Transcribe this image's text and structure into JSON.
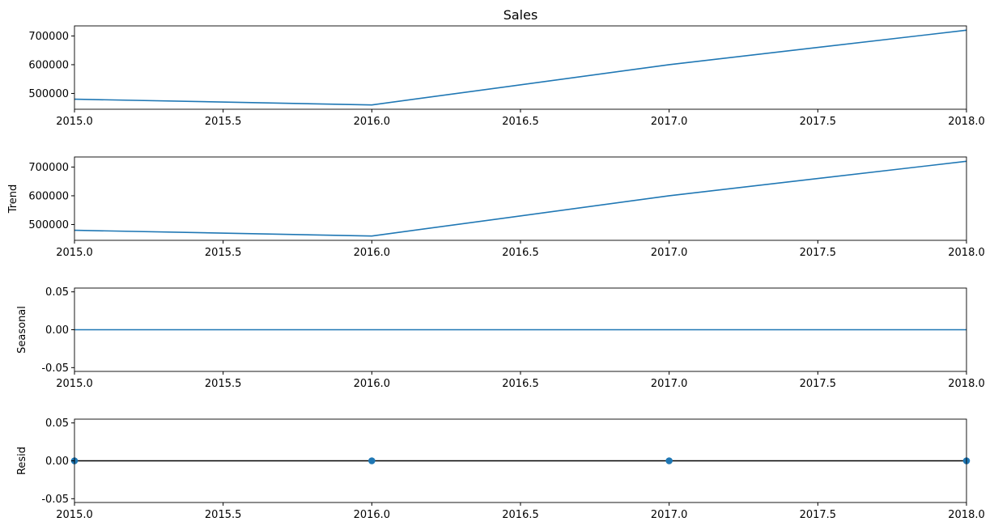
{
  "chart_data": [
    {
      "type": "line",
      "title": "Sales",
      "ylabel": "",
      "x": [
        2015.0,
        2016.0,
        2017.0,
        2018.0
      ],
      "series": [
        {
          "values": [
            480000,
            460000,
            600000,
            720000
          ],
          "color": "#1f77b4"
        }
      ],
      "xlim": [
        2015.0,
        2018.0
      ],
      "ylim": [
        445000,
        735000
      ],
      "xticks": [
        "2015.0",
        "2015.5",
        "2016.0",
        "2016.5",
        "2017.0",
        "2017.5",
        "2018.0"
      ],
      "yticks": [
        500000,
        600000,
        700000
      ],
      "ytick_labels": [
        "500000",
        "600000",
        "700000"
      ],
      "grid": false
    },
    {
      "type": "line",
      "title": "",
      "ylabel": "Trend",
      "x": [
        2015.0,
        2016.0,
        2017.0,
        2018.0
      ],
      "series": [
        {
          "values": [
            480000,
            460000,
            600000,
            720000
          ],
          "color": "#1f77b4"
        }
      ],
      "xlim": [
        2015.0,
        2018.0
      ],
      "ylim": [
        445000,
        735000
      ],
      "xticks": [
        "2015.0",
        "2015.5",
        "2016.0",
        "2016.5",
        "2017.0",
        "2017.5",
        "2018.0"
      ],
      "yticks": [
        500000,
        600000,
        700000
      ],
      "ytick_labels": [
        "500000",
        "600000",
        "700000"
      ],
      "grid": false
    },
    {
      "type": "line",
      "title": "",
      "ylabel": "Seasonal",
      "x": [
        2015.0,
        2016.0,
        2017.0,
        2018.0
      ],
      "series": [
        {
          "values": [
            0,
            0,
            0,
            0
          ],
          "color": "#1f77b4"
        }
      ],
      "xlim": [
        2015.0,
        2018.0
      ],
      "ylim": [
        -0.055,
        0.055
      ],
      "xticks": [
        "2015.0",
        "2015.5",
        "2016.0",
        "2016.5",
        "2017.0",
        "2017.5",
        "2018.0"
      ],
      "yticks": [
        -0.05,
        0.0,
        0.05
      ],
      "ytick_labels": [
        "-0.05",
        "0.00",
        "0.05"
      ],
      "grid": false
    },
    {
      "type": "scatter",
      "title": "",
      "ylabel": "Resid",
      "x": [
        2015.0,
        2016.0,
        2017.0,
        2018.0
      ],
      "series": [
        {
          "values": [
            0,
            0,
            0,
            0
          ],
          "color": "#1f77b4"
        }
      ],
      "baseline": {
        "value": 0,
        "color": "#000000"
      },
      "xlim": [
        2015.0,
        2018.0
      ],
      "ylim": [
        -0.055,
        0.055
      ],
      "xticks": [
        "2015.0",
        "2015.5",
        "2016.0",
        "2016.5",
        "2017.0",
        "2017.5",
        "2018.0"
      ],
      "yticks": [
        -0.05,
        0.0,
        0.05
      ],
      "ytick_labels": [
        "-0.05",
        "0.00",
        "0.05"
      ],
      "grid": false
    }
  ]
}
